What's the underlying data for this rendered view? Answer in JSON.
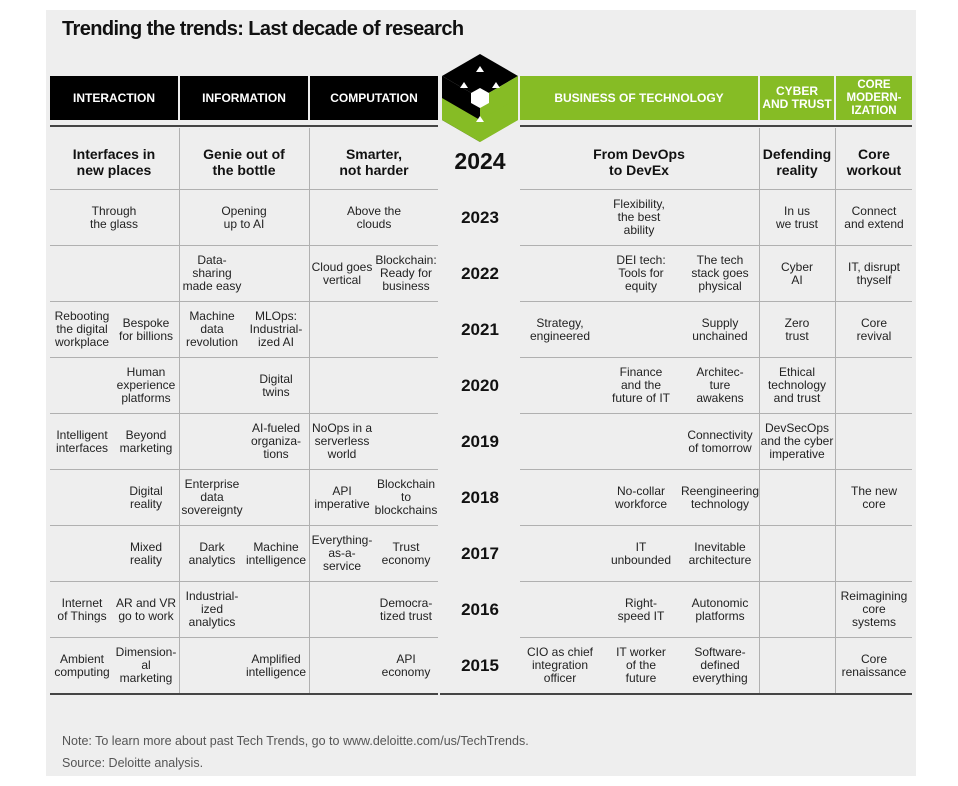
{
  "title": "Trending the trends: Last decade of research",
  "headers": [
    {
      "label": "INTERACTION",
      "style": "dark"
    },
    {
      "label": "INFORMATION",
      "style": "dark"
    },
    {
      "label": "COMPUTATION",
      "style": "dark"
    },
    {
      "label": "BUSINESS OF TECHNOLOGY",
      "style": "green"
    },
    {
      "label": "CYBER AND TRUST",
      "style": "green"
    },
    {
      "label": "CORE MODERN- IZATION",
      "style": "green"
    }
  ],
  "colors": {
    "dark": "#000000",
    "green": "#86bc25",
    "panel": "#eeeeee"
  },
  "rows": [
    {
      "year": "2024",
      "cells": [
        {
          "text": "Interfaces in\nnew places",
          "span": "interaction"
        },
        {
          "text": "Genie out of\nthe bottle",
          "span": "information"
        },
        {
          "text": "Smarter,\nnot harder",
          "span": "computation"
        },
        {
          "text": "From DevOps\nto DevEx",
          "span": "business"
        },
        {
          "text": "Defending\nreality",
          "span": "cyber"
        },
        {
          "text": "Core\nworkout",
          "span": "core"
        }
      ]
    },
    {
      "year": "2023",
      "cells": [
        {
          "text": "Through\nthe glass",
          "span": "interaction"
        },
        {
          "text": "Opening\nup to AI",
          "span": "information"
        },
        {
          "text": "Above the\nclouds",
          "span": "computation"
        },
        {
          "text": "Flexibility,\nthe best\nability",
          "span": "business"
        },
        {
          "text": "In us\nwe trust",
          "span": "cyber"
        },
        {
          "text": "Connect\nand extend",
          "span": "core"
        }
      ]
    },
    {
      "year": "2022",
      "cells": [
        {
          "text": "Data-\nsharing\nmade easy",
          "col": 2
        },
        {
          "text": "Cloud goes\nvertical",
          "col": 4
        },
        {
          "text": "Blockchain:\nReady for\nbusiness",
          "col": 5
        },
        {
          "text": "DEI tech:\nTools for\nequity",
          "col": 7
        },
        {
          "text": "The tech\nstack goes\nphysical",
          "col": 8
        },
        {
          "text": "Cyber\nAI",
          "span": "cyber"
        },
        {
          "text": "IT, disrupt\nthyself",
          "span": "core"
        }
      ]
    },
    {
      "year": "2021",
      "cells": [
        {
          "text": "Rebooting\nthe digital\nworkplace",
          "col": 0
        },
        {
          "text": "Bespoke\nfor billions",
          "col": 1
        },
        {
          "text": "Machine\ndata\nrevolution",
          "col": 2
        },
        {
          "text": "MLOps:\nIndustrial-\nized AI",
          "col": 3
        },
        {
          "text": "Strategy,\nengineered",
          "col": 6
        },
        {
          "text": "Supply\nunchained",
          "col": 8
        },
        {
          "text": "Zero\ntrust",
          "span": "cyber"
        },
        {
          "text": "Core\nrevival",
          "span": "core"
        }
      ]
    },
    {
      "year": "2020",
      "cells": [
        {
          "text": "Human\nexperience\nplatforms",
          "col": 1
        },
        {
          "text": "Digital\ntwins",
          "col": 3
        },
        {
          "text": "Finance\nand the\nfuture of IT",
          "col": 7
        },
        {
          "text": "Architec-\nture\nawakens",
          "col": 8
        },
        {
          "text": "Ethical\ntechnology\nand trust",
          "span": "cyber"
        }
      ]
    },
    {
      "year": "2019",
      "cells": [
        {
          "text": "Intelligent\ninterfaces",
          "col": 0
        },
        {
          "text": "Beyond\nmarketing",
          "col": 1
        },
        {
          "text": "AI-fueled\norganiza-\ntions",
          "col": 3
        },
        {
          "text": "NoOps in a\nserverless\nworld",
          "col": 4
        },
        {
          "text": "Connectivity\nof tomorrow",
          "col": 8
        },
        {
          "text": "DevSecOps\nand the cyber\nimperative",
          "span": "cyber"
        }
      ]
    },
    {
      "year": "2018",
      "cells": [
        {
          "text": "Digital\nreality",
          "col": 1
        },
        {
          "text": "Enterprise\ndata\nsovereignty",
          "col": 2
        },
        {
          "text": "API\nimperative",
          "col": 4
        },
        {
          "text": "Blockchain\nto\nblockchains",
          "col": 5
        },
        {
          "text": "No-collar\nworkforce",
          "col": 7
        },
        {
          "text": "Reengineering\ntechnology",
          "col": 8
        },
        {
          "text": "The new\ncore",
          "span": "core"
        }
      ]
    },
    {
      "year": "2017",
      "cells": [
        {
          "text": "Mixed\nreality",
          "col": 1
        },
        {
          "text": "Dark\nanalytics",
          "col": 2
        },
        {
          "text": "Machine\nintelligence",
          "col": 3
        },
        {
          "text": "Everything-\nas-a-\nservice",
          "col": 4
        },
        {
          "text": "Trust\neconomy",
          "col": 5
        },
        {
          "text": "IT\nunbounded",
          "col": 7
        },
        {
          "text": "Inevitable\narchitecture",
          "col": 8
        }
      ]
    },
    {
      "year": "2016",
      "cells": [
        {
          "text": "Internet\nof Things",
          "col": 0
        },
        {
          "text": "AR and VR\ngo to work",
          "col": 1
        },
        {
          "text": "Industrial-\nized\nanalytics",
          "col": 2
        },
        {
          "text": "Democra-\ntized trust",
          "col": 5
        },
        {
          "text": "Right-\nspeed IT",
          "col": 7
        },
        {
          "text": "Autonomic\nplatforms",
          "col": 8
        },
        {
          "text": "Reimagining\ncore\nsystems",
          "span": "core"
        }
      ]
    },
    {
      "year": "2015",
      "cells": [
        {
          "text": "Ambient\ncomputing",
          "col": 0
        },
        {
          "text": "Dimension-\nal marketing",
          "col": 1
        },
        {
          "text": "Amplified\nintelligence",
          "col": 3
        },
        {
          "text": "API\neconomy",
          "col": 5
        },
        {
          "text": "CIO as chief\nintegration\nofficer",
          "col": 6
        },
        {
          "text": "IT worker\nof the\nfuture",
          "col": 7
        },
        {
          "text": "Software-\ndefined\neverything",
          "col": 8
        },
        {
          "text": "Core\nrenaissance",
          "span": "core"
        }
      ]
    }
  ],
  "note": "Note: To learn more about past Tech Trends, go to www.deloitte.com/us/TechTrends.",
  "source": "Source: Deloitte analysis.",
  "logo_icon": "hexagon-cube-logo-icon"
}
